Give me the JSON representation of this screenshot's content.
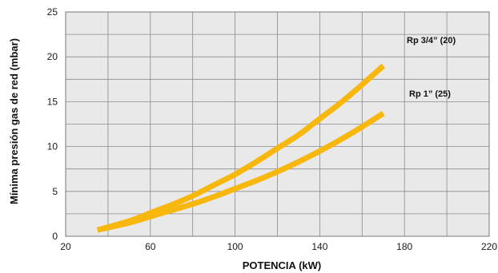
{
  "chart_data": {
    "type": "line",
    "title": "",
    "xlabel": "POTENCIA (kW)",
    "ylabel": "Mínima presión gas de red (mbar)",
    "xlim": [
      20,
      220
    ],
    "ylim": [
      0,
      25
    ],
    "xticks": [
      20,
      60,
      100,
      140,
      180,
      220
    ],
    "yticks": [
      0,
      5,
      10,
      15,
      20,
      25
    ],
    "x_minor_step": 20,
    "y_minor_step": 2.5,
    "grid": true,
    "plot_background": "#e9e9e9",
    "grid_color": "#8a8a8a",
    "series": [
      {
        "name": "Rp 3/4” (20)",
        "color": "#f7b70d",
        "x": [
          35,
          50,
          60,
          70,
          80,
          90,
          100,
          110,
          120,
          130,
          140,
          150,
          160,
          170
        ],
        "y": [
          0.7,
          1.7,
          2.6,
          3.5,
          4.5,
          5.7,
          6.9,
          8.3,
          9.8,
          11.3,
          13.1,
          14.9,
          16.9,
          19.0
        ]
      },
      {
        "name": "Rp 1” (25)",
        "color": "#f7b70d",
        "x": [
          35,
          50,
          60,
          70,
          80,
          90,
          100,
          110,
          120,
          130,
          140,
          150,
          160,
          170
        ],
        "y": [
          0.7,
          1.5,
          2.2,
          2.9,
          3.6,
          4.4,
          5.3,
          6.2,
          7.2,
          8.3,
          9.5,
          10.8,
          12.2,
          13.7
        ]
      }
    ]
  }
}
